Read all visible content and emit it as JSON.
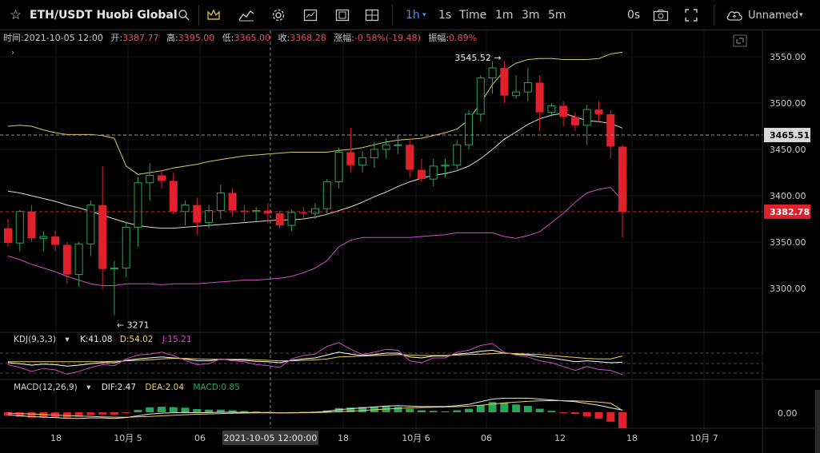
{
  "toolbar": {
    "symbol": "ETH/USDT Huobi Global",
    "intervals": [
      "1h",
      "1s",
      "Time",
      "1m",
      "3m",
      "5m"
    ],
    "active_interval": "1h",
    "replay_label": "0s",
    "layout_name": "Unnamed"
  },
  "legend": {
    "time_label": "时间:",
    "time_value": "2021-10-05 12:00",
    "open_label": "开:",
    "open_value": "3387.77",
    "high_label": "高:",
    "high_value": "3395.00",
    "low_label": "低:",
    "low_value": "3365.00",
    "close_label": "收:",
    "close_value": "3368.28",
    "change_label": "涨幅:",
    "change_value": "-0.58%(-19.48)",
    "amp_label": "振幅:",
    "amp_value": "0.89%"
  },
  "kdj": {
    "name": "KDJ(9,3,3)",
    "k_label": "K:41.08",
    "d_label": "D:54.02",
    "j_label": "J:15.21"
  },
  "macd": {
    "name": "MACD(12,26,9)",
    "dif_label": "DIF:2.47",
    "dea_label": "DEA:2.04",
    "macd_label": "MACD:0.85",
    "zero_label": "0.00"
  },
  "annotations": {
    "high": "3545.52",
    "low": "3271"
  },
  "price_tags": {
    "dashed": "3465.51",
    "last": "3382.78"
  },
  "crosshair_time": "2021-10-05 12:00:00",
  "colors": {
    "up": "#26a65b",
    "down": "#e0212b",
    "upper_band": "#d2cd5c",
    "mid_band": "#d8d8d8",
    "lower_band": "#d249c9",
    "kdj_k": "#ffffff",
    "kdj_d": "#e8d35a",
    "kdj_j": "#d249c9"
  },
  "chart_data": {
    "type": "candlestick",
    "price_axis": {
      "ticks": [
        3550,
        3500,
        3450,
        3400,
        3350,
        3300
      ]
    },
    "time_axis": [
      "18",
      "10月 5",
      "06",
      "18",
      "10月 6",
      "06",
      "12",
      "18",
      "10月 7"
    ],
    "candles": [
      {
        "o": 3365,
        "h": 3375,
        "l": 3345,
        "c": 3349
      },
      {
        "o": 3349,
        "h": 3385,
        "l": 3340,
        "c": 3383
      },
      {
        "o": 3383,
        "h": 3390,
        "l": 3350,
        "c": 3354
      },
      {
        "o": 3354,
        "h": 3362,
        "l": 3340,
        "c": 3356
      },
      {
        "o": 3356,
        "h": 3362,
        "l": 3340,
        "c": 3347
      },
      {
        "o": 3347,
        "h": 3350,
        "l": 3305,
        "c": 3315
      },
      {
        "o": 3315,
        "h": 3350,
        "l": 3302,
        "c": 3348
      },
      {
        "o": 3348,
        "h": 3395,
        "l": 3335,
        "c": 3390
      },
      {
        "o": 3390,
        "h": 3432,
        "l": 3300,
        "c": 3321
      },
      {
        "o": 3321,
        "h": 3330,
        "l": 3271,
        "c": 3322
      },
      {
        "o": 3322,
        "h": 3372,
        "l": 3312,
        "c": 3366
      },
      {
        "o": 3366,
        "h": 3420,
        "l": 3345,
        "c": 3414
      },
      {
        "o": 3414,
        "h": 3435,
        "l": 3395,
        "c": 3422
      },
      {
        "o": 3422,
        "h": 3428,
        "l": 3408,
        "c": 3416
      },
      {
        "o": 3416,
        "h": 3425,
        "l": 3380,
        "c": 3383
      },
      {
        "o": 3383,
        "h": 3395,
        "l": 3368,
        "c": 3390
      },
      {
        "o": 3390,
        "h": 3398,
        "l": 3358,
        "c": 3371
      },
      {
        "o": 3371,
        "h": 3390,
        "l": 3365,
        "c": 3384
      },
      {
        "o": 3384,
        "h": 3412,
        "l": 3375,
        "c": 3403
      },
      {
        "o": 3403,
        "h": 3408,
        "l": 3378,
        "c": 3384
      },
      {
        "o": 3384,
        "h": 3390,
        "l": 3372,
        "c": 3383
      },
      {
        "o": 3383,
        "h": 3388,
        "l": 3372,
        "c": 3384
      },
      {
        "o": 3384,
        "h": 3392,
        "l": 3370,
        "c": 3381
      },
      {
        "o": 3381,
        "h": 3384,
        "l": 3365,
        "c": 3368
      },
      {
        "o": 3368,
        "h": 3385,
        "l": 3362,
        "c": 3382
      },
      {
        "o": 3382,
        "h": 3388,
        "l": 3374,
        "c": 3381
      },
      {
        "o": 3381,
        "h": 3392,
        "l": 3375,
        "c": 3386
      },
      {
        "o": 3386,
        "h": 3418,
        "l": 3380,
        "c": 3415
      },
      {
        "o": 3415,
        "h": 3452,
        "l": 3408,
        "c": 3447
      },
      {
        "o": 3447,
        "h": 3473,
        "l": 3425,
        "c": 3433
      },
      {
        "o": 3433,
        "h": 3448,
        "l": 3425,
        "c": 3441
      },
      {
        "o": 3441,
        "h": 3458,
        "l": 3430,
        "c": 3450
      },
      {
        "o": 3450,
        "h": 3462,
        "l": 3440,
        "c": 3455
      },
      {
        "o": 3455,
        "h": 3466,
        "l": 3445,
        "c": 3455
      },
      {
        "o": 3455,
        "h": 3462,
        "l": 3420,
        "c": 3428
      },
      {
        "o": 3428,
        "h": 3440,
        "l": 3415,
        "c": 3418
      },
      {
        "o": 3418,
        "h": 3440,
        "l": 3410,
        "c": 3432
      },
      {
        "o": 3432,
        "h": 3440,
        "l": 3420,
        "c": 3433
      },
      {
        "o": 3433,
        "h": 3460,
        "l": 3428,
        "c": 3455
      },
      {
        "o": 3455,
        "h": 3492,
        "l": 3450,
        "c": 3488
      },
      {
        "o": 3488,
        "h": 3530,
        "l": 3480,
        "c": 3527
      },
      {
        "o": 3527,
        "h": 3545,
        "l": 3510,
        "c": 3538
      },
      {
        "o": 3538,
        "h": 3545.52,
        "l": 3500,
        "c": 3508
      },
      {
        "o": 3508,
        "h": 3530,
        "l": 3505,
        "c": 3512
      },
      {
        "o": 3512,
        "h": 3538,
        "l": 3502,
        "c": 3522
      },
      {
        "o": 3522,
        "h": 3530,
        "l": 3470,
        "c": 3490
      },
      {
        "o": 3490,
        "h": 3500,
        "l": 3485,
        "c": 3497
      },
      {
        "o": 3497,
        "h": 3502,
        "l": 3475,
        "c": 3485
      },
      {
        "o": 3485,
        "h": 3490,
        "l": 3470,
        "c": 3476
      },
      {
        "o": 3476,
        "h": 3498,
        "l": 3455,
        "c": 3493
      },
      {
        "o": 3493,
        "h": 3502,
        "l": 3480,
        "c": 3488
      },
      {
        "o": 3488,
        "h": 3492,
        "l": 3440,
        "c": 3453
      },
      {
        "o": 3453,
        "h": 3455,
        "l": 3355,
        "c": 3382.78
      }
    ],
    "bollinger": {
      "upper": [
        3475,
        3476,
        3475,
        3471,
        3468,
        3466,
        3466,
        3466,
        3465,
        3462,
        3432,
        3423,
        3425,
        3427,
        3430,
        3432,
        3434,
        3437,
        3439,
        3441,
        3443,
        3444,
        3445,
        3446,
        3447,
        3447,
        3447,
        3447,
        3449,
        3450,
        3452,
        3455,
        3458,
        3460,
        3461,
        3462,
        3465,
        3468,
        3472,
        3482,
        3500,
        3520,
        3535,
        3543,
        3547,
        3548,
        3548,
        3547,
        3547,
        3547,
        3548,
        3553,
        3555
      ],
      "middle": [
        3405,
        3403,
        3400,
        3397,
        3394,
        3390,
        3387,
        3383,
        3379,
        3375,
        3371,
        3368,
        3366,
        3365,
        3365,
        3366,
        3367,
        3368,
        3369,
        3370,
        3371,
        3372,
        3373,
        3374,
        3374,
        3375,
        3377,
        3380,
        3384,
        3388,
        3393,
        3399,
        3404,
        3410,
        3415,
        3419,
        3422,
        3424,
        3427,
        3432,
        3440,
        3450,
        3461,
        3469,
        3477,
        3483,
        3487,
        3489,
        3485,
        3481,
        3480,
        3478,
        3473
      ],
      "lower": [
        3335,
        3331,
        3326,
        3322,
        3318,
        3313,
        3309,
        3305,
        3303,
        3303,
        3305,
        3305,
        3305,
        3304,
        3305,
        3305,
        3305,
        3306,
        3307,
        3308,
        3309,
        3309,
        3310,
        3311,
        3313,
        3317,
        3322,
        3330,
        3345,
        3352,
        3355,
        3355,
        3355,
        3355,
        3355,
        3356,
        3357,
        3358,
        3360,
        3360,
        3360,
        3360,
        3356,
        3354,
        3357,
        3361,
        3371,
        3381,
        3393,
        3403,
        3407,
        3409,
        3395
      ]
    },
    "kdj_k": [
      40,
      38,
      35,
      37,
      36,
      33,
      35,
      38,
      40,
      40,
      45,
      48,
      50,
      52,
      50,
      48,
      44,
      44,
      47,
      46,
      45,
      43,
      42,
      40,
      45,
      48,
      50,
      56,
      62,
      58,
      55,
      57,
      60,
      60,
      52,
      50,
      54,
      54,
      58,
      60,
      64,
      66,
      60,
      58,
      56,
      52,
      50,
      46,
      42,
      44,
      42,
      40,
      41.08
    ],
    "kdj_d": [
      42,
      42,
      42,
      42,
      42,
      42,
      42,
      42,
      42,
      43,
      44,
      45,
      46,
      48,
      49,
      49,
      48,
      47,
      47,
      47,
      47,
      46,
      45,
      44,
      44,
      45,
      46,
      48,
      52,
      53,
      54,
      55,
      56,
      57,
      56,
      55,
      55,
      55,
      56,
      57,
      58,
      59,
      60,
      59,
      58,
      57,
      55,
      53,
      51,
      49,
      48,
      48,
      54.02
    ],
    "kdj_j": [
      36,
      30,
      22,
      28,
      25,
      16,
      22,
      30,
      36,
      34,
      48,
      56,
      58,
      62,
      55,
      45,
      36,
      38,
      48,
      44,
      42,
      36,
      34,
      30,
      48,
      55,
      58,
      74,
      82,
      68,
      57,
      62,
      68,
      66,
      44,
      40,
      50,
      50,
      62,
      66,
      76,
      80,
      62,
      56,
      52,
      44,
      40,
      32,
      24,
      32,
      26,
      24,
      15.21
    ],
    "macd_dif": [
      -3,
      -4,
      -5,
      -5.5,
      -6,
      -6.8,
      -7,
      -6.5,
      -6.5,
      -7,
      -6,
      -4,
      -2,
      -1,
      -0.5,
      -0.2,
      -0.5,
      -0.4,
      0,
      0,
      -0.2,
      -0.3,
      -0.4,
      -0.8,
      -0.5,
      -0.3,
      0,
      1,
      3,
      4,
      5,
      6,
      7,
      7.5,
      7,
      6.5,
      6.5,
      6.5,
      7.5,
      9,
      12,
      15,
      16,
      16,
      16,
      15,
      14,
      13,
      12,
      10,
      8,
      5,
      2.47
    ],
    "macd_dea": [
      -1,
      -1.5,
      -2,
      -2.6,
      -3.2,
      -3.8,
      -4.4,
      -4.8,
      -5.2,
      -5.5,
      -5.6,
      -5.3,
      -4.8,
      -4.1,
      -3.4,
      -2.8,
      -2.3,
      -1.9,
      -1.5,
      -1.1,
      -0.9,
      -0.7,
      -0.6,
      -0.6,
      -0.6,
      -0.5,
      -0.4,
      0,
      0.6,
      1.3,
      2,
      2.8,
      3.6,
      4.4,
      5,
      5.4,
      5.7,
      6,
      6.4,
      7,
      8,
      9.2,
      10.5,
      11.6,
      12.4,
      13,
      13.2,
      13.2,
      13,
      12.4,
      11.6,
      10.4,
      2.04
    ],
    "macd_hist": [
      -4,
      -5,
      -6,
      -6,
      -5.6,
      -6,
      -5.2,
      -3.4,
      -2.6,
      -3,
      -0.8,
      2.6,
      5.6,
      6.2,
      5.8,
      5.2,
      3.6,
      3,
      3,
      2.2,
      1.4,
      0.8,
      0.4,
      -0.4,
      0.2,
      0.4,
      0.8,
      2,
      4.8,
      5.4,
      6,
      6.4,
      6.8,
      6.2,
      4,
      2.2,
      1.6,
      1,
      2.2,
      4,
      8,
      11.6,
      11,
      8.8,
      7.2,
      4,
      1.6,
      -0.4,
      -2,
      -4.8,
      -7.2,
      -10.8,
      -22
    ]
  }
}
